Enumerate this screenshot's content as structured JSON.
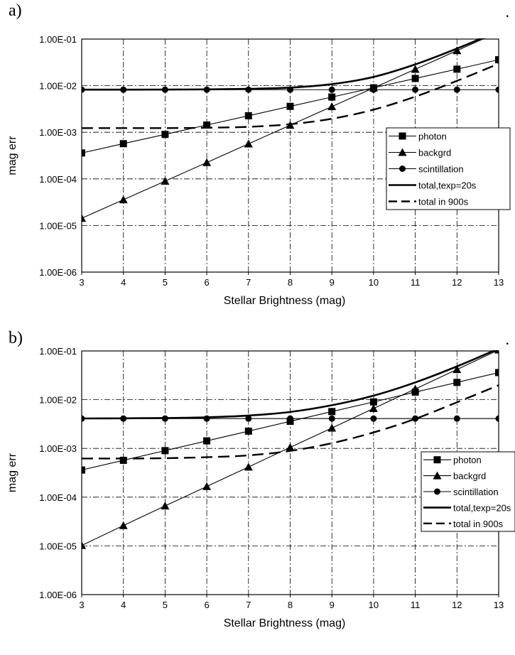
{
  "chart_data": [
    {
      "panel_label": "a)",
      "corner_mark": ".",
      "type": "line",
      "xlabel": "Stellar Brightness (mag)",
      "ylabel": "mag err",
      "yscale": "log",
      "x": [
        3,
        4,
        5,
        6,
        7,
        8,
        9,
        10,
        11,
        12,
        13
      ],
      "xlim": [
        3,
        13
      ],
      "ylim": [
        1e-06,
        0.1
      ],
      "xticks": [
        "3",
        "4",
        "5",
        "6",
        "7",
        "8",
        "9",
        "10",
        "11",
        "12",
        "13"
      ],
      "yticks": [
        "1.00E-06",
        "1.00E-05",
        "1.00E-04",
        "1.00E-03",
        "1.00E-02",
        "1.00E-01"
      ],
      "grid": true,
      "legend_position": "right",
      "series": [
        {
          "name": "photon",
          "marker": "square",
          "line": "solid-thin",
          "values": [
            0.00036,
            0.00057,
            0.0009,
            0.00143,
            0.00226,
            0.0036,
            0.0057,
            0.009,
            0.0143,
            0.0226,
            0.036
          ]
        },
        {
          "name": "backgrd",
          "marker": "triangle",
          "line": "solid-thin",
          "values": [
            1.43e-05,
            3.57e-05,
            8.95e-05,
            0.000225,
            0.000565,
            0.00142,
            0.00357,
            0.00895,
            0.0225,
            0.0565,
            0.142
          ]
        },
        {
          "name": "scintillation",
          "marker": "circle",
          "line": "solid-thin",
          "values": [
            0.0082,
            0.0082,
            0.0082,
            0.0082,
            0.0082,
            0.0082,
            0.0082,
            0.0082,
            0.0082,
            0.0082,
            0.0082
          ]
        },
        {
          "name": "total,texp=20s",
          "marker": "none",
          "line": "solid-thick",
          "values": [
            0.00821,
            0.00822,
            0.00825,
            0.00833,
            0.00855,
            0.0091,
            0.0108,
            0.0154,
            0.0286,
            0.0626,
            0.148
          ]
        },
        {
          "name": "total in 900s",
          "marker": "none",
          "line": "dashed-thick",
          "values": [
            0.00123,
            0.00123,
            0.00123,
            0.00125,
            0.00131,
            0.00149,
            0.00195,
            0.00306,
            0.00581,
            0.0127,
            0.0296
          ]
        }
      ]
    },
    {
      "panel_label": "b)",
      "corner_mark": ".",
      "type": "line",
      "xlabel": "Stellar Brightness (mag)",
      "ylabel": "mag err",
      "yscale": "log",
      "x": [
        3,
        4,
        5,
        6,
        7,
        8,
        9,
        10,
        11,
        12,
        13
      ],
      "xlim": [
        3,
        13
      ],
      "ylim": [
        1e-06,
        0.1
      ],
      "xticks": [
        "3",
        "4",
        "5",
        "6",
        "7",
        "8",
        "9",
        "10",
        "11",
        "12",
        "13"
      ],
      "yticks": [
        "1.00E-06",
        "1.00E-05",
        "1.00E-04",
        "1.00E-03",
        "1.00E-02",
        "1.00E-01"
      ],
      "grid": true,
      "legend_position": "right",
      "series": [
        {
          "name": "photon",
          "marker": "square",
          "line": "solid-thin",
          "values": [
            0.00036,
            0.00057,
            0.0009,
            0.00143,
            0.00226,
            0.0036,
            0.0057,
            0.009,
            0.0143,
            0.0226,
            0.036
          ]
        },
        {
          "name": "backgrd",
          "marker": "triangle",
          "line": "solid-thin",
          "values": [
            1.02e-05,
            2.62e-05,
            6.6e-05,
            0.000166,
            0.000416,
            0.00105,
            0.00262,
            0.0066,
            0.0166,
            0.0416,
            0.105
          ]
        },
        {
          "name": "scintillation",
          "marker": "circle",
          "line": "solid-thin",
          "values": [
            0.0041,
            0.0041,
            0.0041,
            0.0041,
            0.0041,
            0.0041,
            0.0041,
            0.0041,
            0.0041,
            0.0041,
            0.0041
          ]
        },
        {
          "name": "total,texp=20s",
          "marker": "none",
          "line": "solid-thick",
          "values": [
            0.00412,
            0.00414,
            0.0042,
            0.00435,
            0.00472,
            0.0056,
            0.0077,
            0.0121,
            0.0226,
            0.0482,
            0.112
          ]
        },
        {
          "name": "total in 900s",
          "marker": "none",
          "line": "dashed-thick",
          "values": [
            0.00062,
            0.00062,
            0.00063,
            0.00066,
            0.00072,
            0.00089,
            0.00128,
            0.00213,
            0.00404,
            0.00883,
            0.0198
          ]
        }
      ]
    }
  ]
}
